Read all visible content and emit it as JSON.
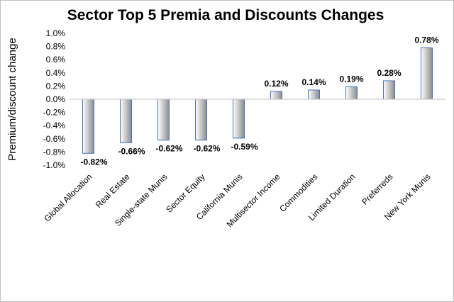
{
  "chart_data": {
    "type": "bar",
    "title": "Sector Top 5 Premia and Discounts Changes",
    "xlabel": "",
    "ylabel": "Premium/discount change",
    "ylim": [
      -1.0,
      1.0
    ],
    "yticks": [
      1.0,
      0.8,
      0.6,
      0.4,
      0.2,
      0.0,
      -0.2,
      -0.4,
      -0.6,
      -0.8,
      -1.0
    ],
    "ytick_labels": [
      "1.0%",
      "0.8%",
      "0.6%",
      "0.4%",
      "0.2%",
      "0.0%",
      "-0.2%",
      "-0.4%",
      "-0.6%",
      "-0.8%",
      "-1.0%"
    ],
    "categories": [
      "Global Allocation",
      "Real Estate",
      "Single-state Munis",
      "Sector Equity",
      "California Munis",
      "Multisector Income",
      "Commodities",
      "Limited Duration",
      "Preferreds",
      "New York Munis"
    ],
    "values": [
      -0.82,
      -0.66,
      -0.62,
      -0.62,
      -0.59,
      0.12,
      0.14,
      0.19,
      0.28,
      0.78
    ],
    "data_labels": [
      "-0.82%",
      "-0.66%",
      "-0.62%",
      "-0.62%",
      "-0.59%",
      "0.12%",
      "0.14%",
      "0.19%",
      "0.28%",
      "0.78%"
    ],
    "grid": false,
    "legend": "none",
    "bar_gradient_colors": [
      "#ffffff",
      "#8c8c8c"
    ],
    "bar_border_color": "#4472c4"
  }
}
